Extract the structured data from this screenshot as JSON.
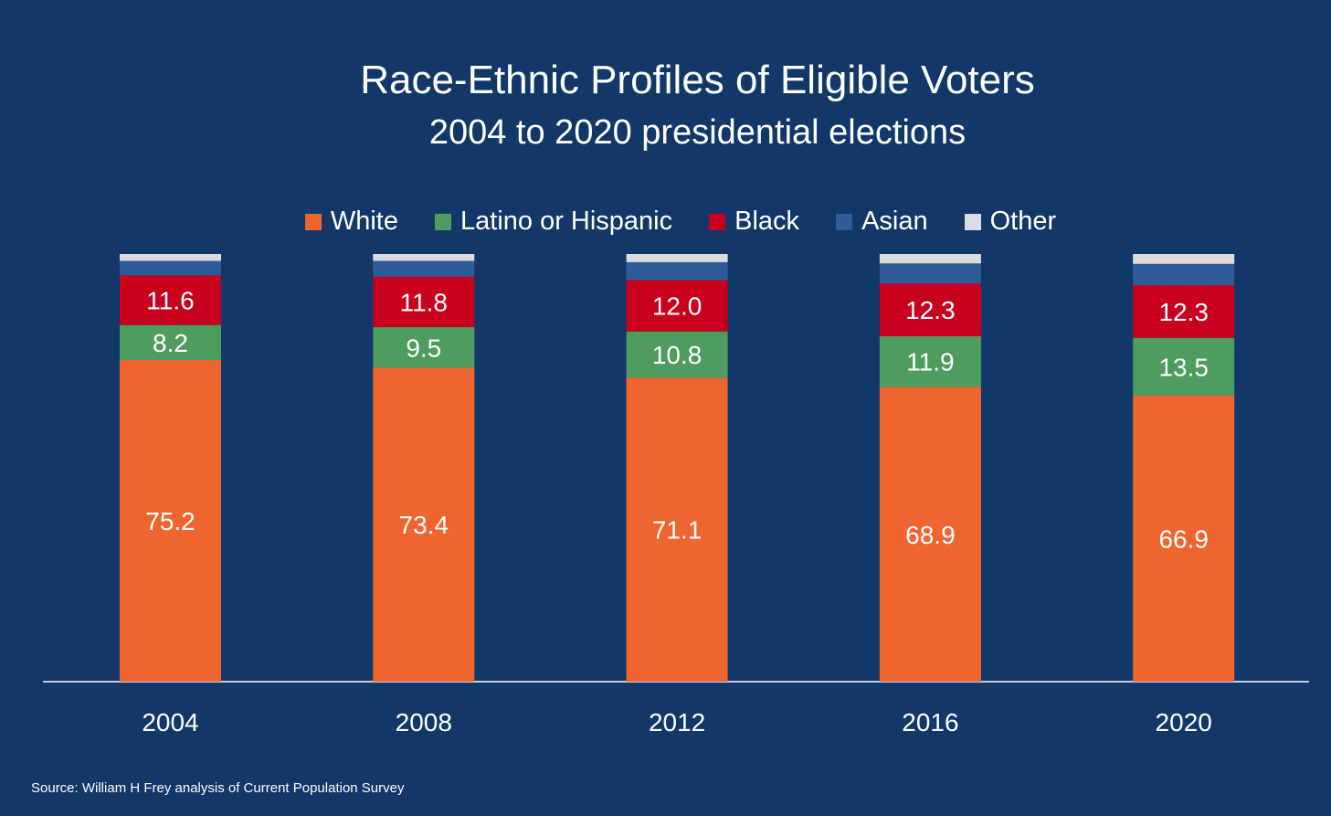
{
  "chart_data": {
    "type": "bar",
    "stacked": true,
    "title": "Race-Ethnic Profiles of Eligible Voters",
    "subtitle": "2004 to 2020 presidential elections",
    "categories": [
      "2004",
      "2008",
      "2012",
      "2016",
      "2020"
    ],
    "series": [
      {
        "name": "White",
        "color": "#EF6530",
        "values": [
          75.2,
          73.4,
          71.1,
          68.9,
          66.9
        ],
        "labels": [
          "75.2",
          "73.4",
          "71.1",
          "68.9",
          "66.9"
        ]
      },
      {
        "name": "Latino or Hispanic",
        "color": "#4E9C5E",
        "values": [
          8.2,
          9.5,
          10.8,
          11.9,
          13.5
        ],
        "labels": [
          "8.2",
          "9.5",
          "10.8",
          "11.9",
          "13.5"
        ]
      },
      {
        "name": "Black",
        "color": "#C8001E",
        "values": [
          11.6,
          11.8,
          12.0,
          12.3,
          12.3
        ],
        "labels": [
          "11.6",
          "11.8",
          "12.0",
          "12.3",
          "12.3"
        ]
      },
      {
        "name": "Asian",
        "color": "#2F5C96",
        "values": [
          3.4,
          3.7,
          4.2,
          4.7,
          5.0
        ]
      },
      {
        "name": "Other",
        "color": "#DCDCDC",
        "values": [
          1.6,
          1.6,
          1.9,
          2.2,
          2.3
        ]
      }
    ],
    "ylim": [
      0,
      100
    ],
    "legend_position": "top",
    "grid": false
  },
  "source": "Source: William H Frey analysis of Current Population Survey"
}
